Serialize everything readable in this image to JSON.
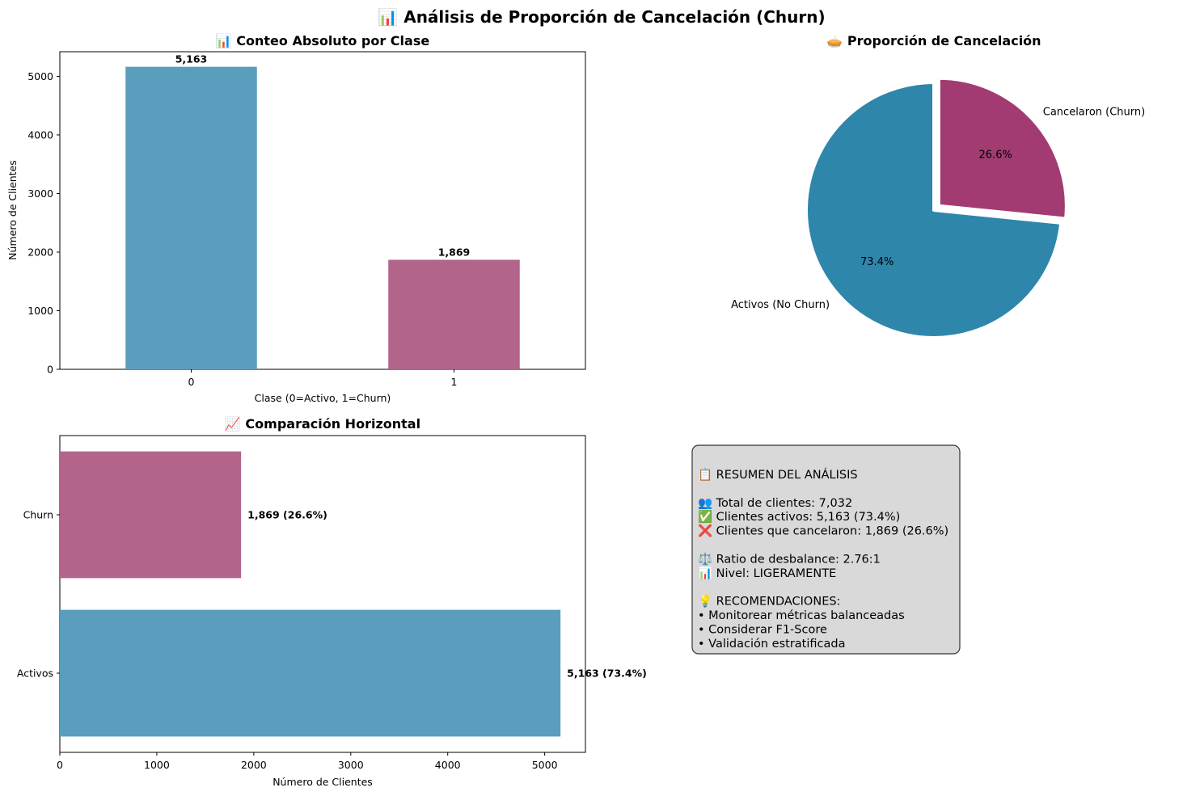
{
  "figure_title": "📊 Análisis de Proporción de Cancelación (Churn)",
  "colors": {
    "activo": "#5A9DBD",
    "churn": "#B2648B",
    "pie_activo": "#2E86AB",
    "pie_churn": "#A23B72",
    "summary_bg": "#D9D9D9"
  },
  "chart_data": [
    {
      "type": "bar",
      "title": "📊 Conteo Absoluto por Clase",
      "xlabel": "Clase (0=Activo, 1=Churn)",
      "ylabel": "Número de Clientes",
      "categories": [
        "0",
        "1"
      ],
      "values": [
        5163,
        1869
      ],
      "data_labels": [
        "5,163",
        "1,869"
      ],
      "ylim": [
        0,
        5420
      ],
      "yticks": [
        0,
        1000,
        2000,
        3000,
        4000,
        5000
      ],
      "grid": false
    },
    {
      "type": "pie",
      "title": "🥧 Proporción de Cancelación",
      "labels": [
        "Activos (No Churn)",
        "Cancelaron (Churn)"
      ],
      "values": [
        73.4,
        26.6
      ],
      "pct_labels": [
        "73.4%",
        "26.6%"
      ],
      "explode": [
        0,
        0.05
      ],
      "start_angle": 90
    },
    {
      "type": "bar",
      "orientation": "horizontal",
      "title": "📈 Comparación Horizontal",
      "xlabel": "Número de Clientes",
      "categories": [
        "Activos",
        "Churn"
      ],
      "values": [
        5163,
        1869
      ],
      "data_labels": [
        "5,163 (73.4%)",
        "1,869 (26.6%)"
      ],
      "xlim": [
        0,
        5420
      ],
      "xticks": [
        0,
        1000,
        2000,
        3000,
        4000,
        5000
      ],
      "grid": false
    }
  ],
  "summary": {
    "lines": [
      "📋 RESUMEN DEL ANÁLISIS",
      "",
      "👥 Total de clientes: 7,032",
      "✅ Clientes activos: 5,163 (73.4%)",
      "❌ Clientes que cancelaron: 1,869 (26.6%)",
      "",
      "⚖️ Ratio de desbalance: 2.76:1",
      "📊 Nivel: LIGERAMENTE",
      "",
      "💡 RECOMENDACIONES:",
      "• Monitorear métricas balanceadas",
      "• Considerar F1-Score",
      "• Validación estratificada"
    ]
  }
}
